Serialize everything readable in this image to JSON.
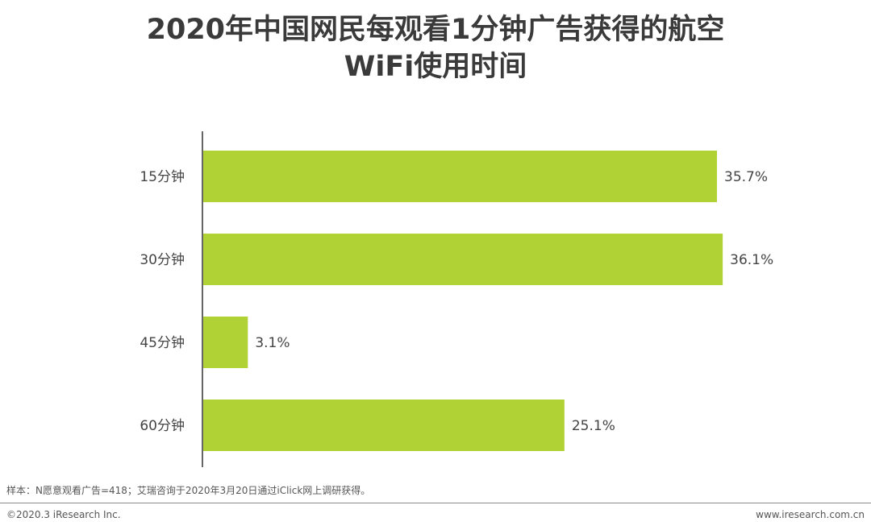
{
  "title": {
    "line1": "2020年中国网民每观看1分钟广告获得的航空",
    "line2": "WiFi使用时间"
  },
  "chart_data": {
    "type": "bar",
    "orientation": "horizontal",
    "categories": [
      "15分钟",
      "30分钟",
      "45分钟",
      "60分钟"
    ],
    "values": [
      35.7,
      36.1,
      3.1,
      25.1
    ],
    "value_labels": [
      "35.7%",
      "36.1%",
      "3.1%",
      "25.1%"
    ],
    "xlim": [
      0,
      40
    ],
    "grid": false,
    "bar_color": "#b0d234"
  },
  "footer": {
    "source": "样本：N愿意观看广告=418；艾瑞咨询于2020年3月20日通过iClick网上调研获得。",
    "copyright": "©2020.3 iResearch Inc.",
    "website": "www.iresearch.com.cn"
  }
}
